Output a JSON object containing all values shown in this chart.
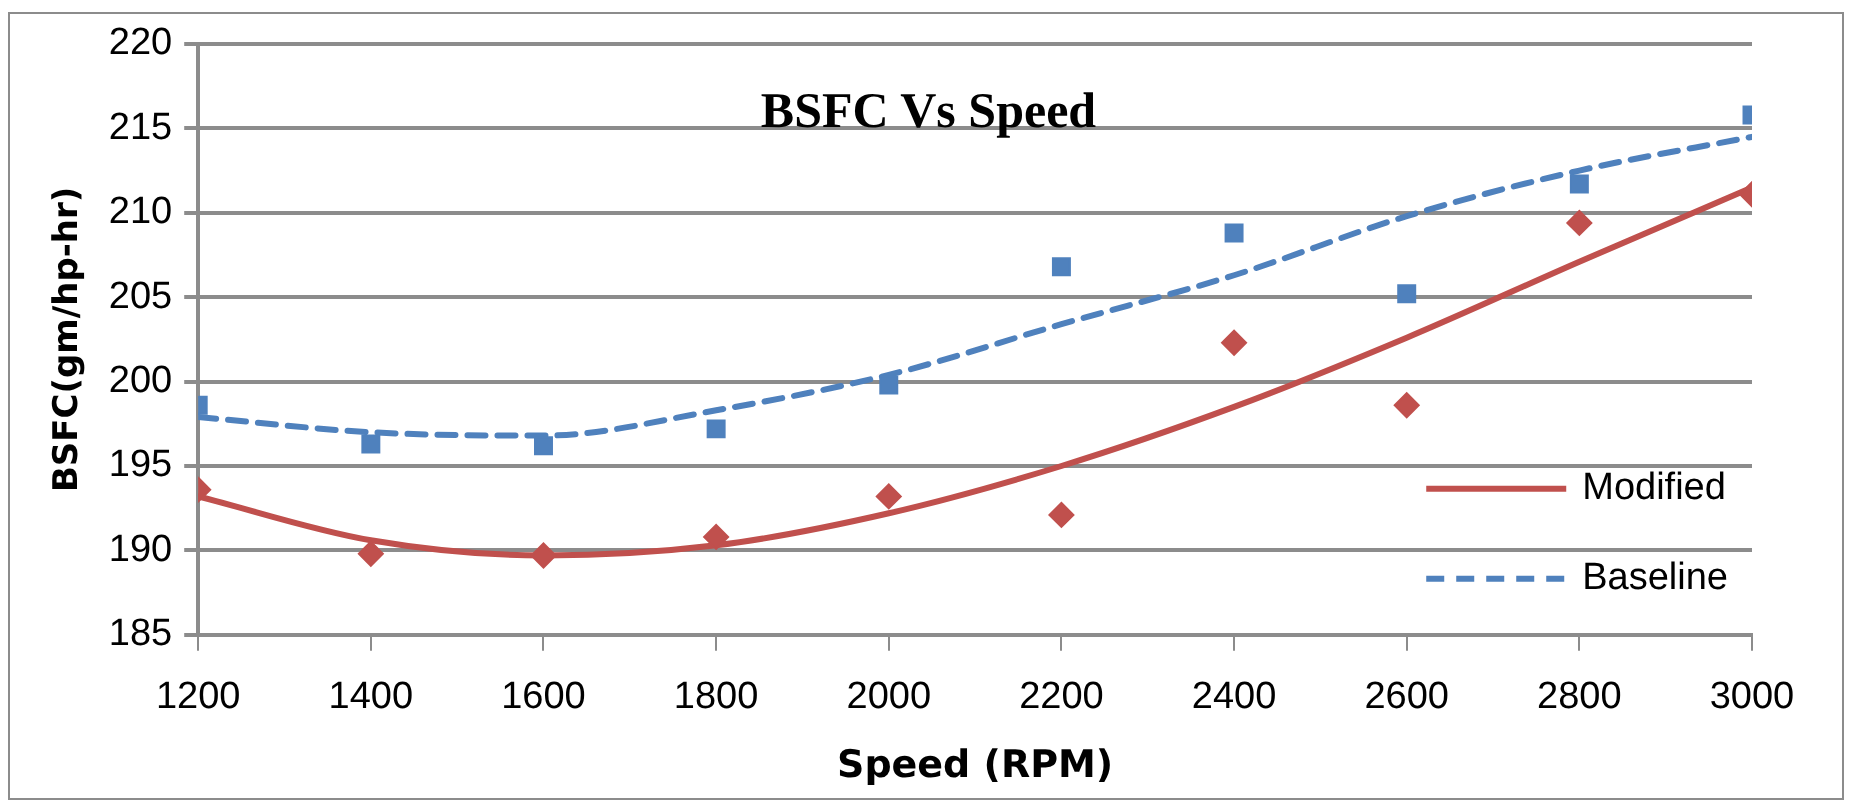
{
  "chart_data": {
    "type": "scatter",
    "title": "BSFC Vs Speed",
    "xlabel": "Speed (RPM)",
    "ylabel": "BSFC(gm/hp-hr)",
    "x": [
      1200,
      1400,
      1600,
      1800,
      2000,
      2200,
      2400,
      2600,
      2800,
      3000
    ],
    "series": [
      {
        "type": "line",
        "name": "Modified",
        "color": "#c0504d",
        "line_style": "solid",
        "marker": "none",
        "values": [
          193.2,
          190.6,
          189.7,
          190.3,
          192.2,
          195.0,
          198.5,
          202.6,
          207.1,
          211.5
        ]
      },
      {
        "type": "line",
        "name": "Baseline",
        "color": "#4f81bd",
        "line_style": "dashed",
        "marker": "none",
        "values": [
          197.9,
          197.0,
          196.8,
          198.3,
          200.4,
          203.4,
          206.3,
          209.8,
          212.5,
          214.5
        ]
      },
      {
        "type": "scatter",
        "color": "#4f81bd",
        "marker": "square",
        "values": [
          198.6,
          196.3,
          196.2,
          197.2,
          199.8,
          206.8,
          208.8,
          205.2,
          211.7,
          215.8
        ]
      },
      {
        "type": "scatter",
        "color": "#c0504d",
        "marker": "diamond",
        "values": [
          193.6,
          189.8,
          189.7,
          190.8,
          193.2,
          192.1,
          202.3,
          198.6,
          209.4,
          211.1
        ]
      }
    ],
    "xlim": [
      1200,
      3000
    ],
    "xticks": [
      1200,
      1400,
      1600,
      1800,
      2000,
      2200,
      2400,
      2600,
      2800,
      3000
    ],
    "ylim": [
      185,
      220
    ],
    "yticks": [
      185,
      190,
      195,
      200,
      205,
      210,
      215,
      220
    ],
    "grid": "y",
    "legend": "bottom right"
  }
}
